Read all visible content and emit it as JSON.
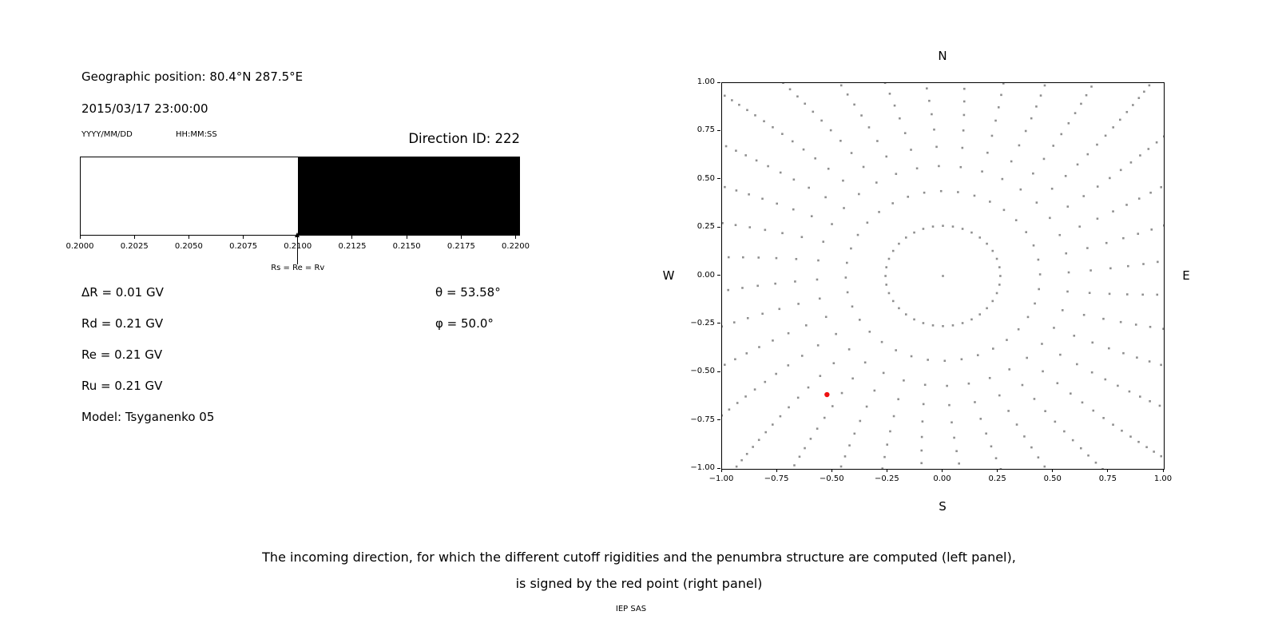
{
  "left_panel": {
    "geo_position": "Geographic position: 80.4°N 287.5°E",
    "datetime": "2015/03/17 23:00:00",
    "date_format_label": "YYYY/MM/DD",
    "time_format_label": "HH:MM:SS",
    "direction_id": "Direction ID: 222",
    "arrow_label": "Rs = Re = Rv",
    "params_left": [
      "ΔR = 0.01 GV",
      "Rd = 0.21 GV",
      "Re = 0.21 GV",
      "Ru = 0.21 GV",
      "Model: Tsyganenko 05"
    ],
    "params_right": [
      "θ = 53.58°",
      "φ = 50.0°"
    ]
  },
  "caption": {
    "line1": "The incoming direction, for which the different cutoff rigidities and the penumbra structure are computed (left panel),",
    "line2": "is signed by the red point (right panel)",
    "credit": "IEP SAS"
  },
  "chart_data": [
    {
      "type": "bar",
      "title": "",
      "xlabel": "",
      "ylabel": "",
      "xlim": [
        0.2,
        0.2202
      ],
      "xticks": [
        0.2,
        0.2025,
        0.205,
        0.2075,
        0.21,
        0.2125,
        0.215,
        0.2175,
        0.22
      ],
      "xtick_labels": [
        "0.2000",
        "0.2025",
        "0.2050",
        "0.2075",
        "0.2100",
        "0.2125",
        "0.2150",
        "0.2175",
        "0.2200"
      ],
      "segments": [
        {
          "from": 0.2,
          "to": 0.21,
          "color": "#ffffff"
        },
        {
          "from": 0.21,
          "to": 0.2202,
          "color": "#000000"
        }
      ],
      "annotation": {
        "label": "Rs = Re = Rv",
        "x": 0.21
      }
    },
    {
      "type": "scatter",
      "title": "",
      "xlim": [
        -1,
        1
      ],
      "ylim": [
        -1,
        1
      ],
      "xticks": [
        -1,
        -0.75,
        -0.5,
        -0.25,
        0,
        0.25,
        0.5,
        0.75,
        1
      ],
      "xtick_labels": [
        "−1.00",
        "−0.75",
        "−0.50",
        "−0.25",
        "0.00",
        "0.25",
        "0.50",
        "0.75",
        "1.00"
      ],
      "yticks": [
        1,
        0.75,
        0.5,
        0.25,
        0,
        -0.25,
        -0.5,
        -0.75,
        -1
      ],
      "ytick_labels": [
        "1.00",
        "0.75",
        "0.50",
        "0.25",
        "0.00",
        "−0.25",
        "−0.50",
        "−0.75",
        "−1.00"
      ],
      "direction_labels": {
        "top": "N",
        "bottom": "S",
        "left": "W",
        "right": "E"
      },
      "grid_points": {
        "azimuth_step_deg": 10,
        "radii": [
          0.26,
          0.44,
          0.57,
          0.67,
          0.76,
          0.84,
          0.91,
          0.975,
          1.035,
          1.09,
          1.14,
          1.19,
          1.235,
          1.28,
          1.32,
          1.36,
          1.4,
          1.44
        ],
        "spiral_deg_per_unit": 6,
        "center_point": [
          0,
          0
        ],
        "marker_color": "#8f8f8f",
        "marker_size_px": 2.6
      },
      "red_point": {
        "x": -0.525,
        "y": -0.615,
        "color": "#ee1111",
        "radius_px": 3.2
      }
    }
  ]
}
